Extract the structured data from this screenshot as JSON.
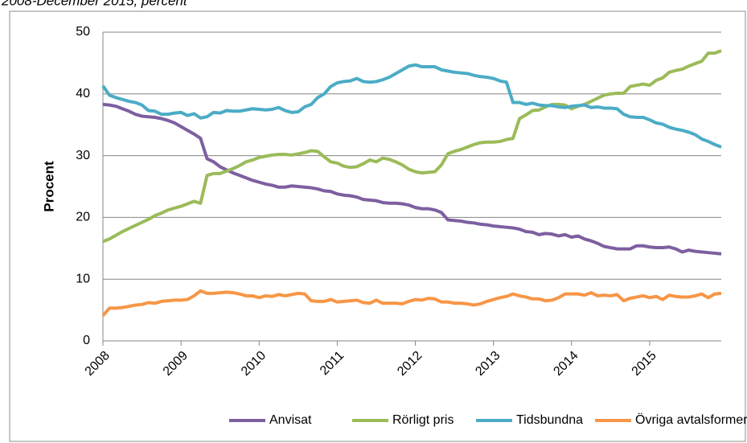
{
  "chart_data": {
    "type": "line",
    "subtitle": "2008-December 2015, percent",
    "y_label": "Procent",
    "categories": [
      "2008",
      null,
      null,
      null,
      null,
      null,
      null,
      null,
      null,
      null,
      null,
      null,
      "2009",
      null,
      null,
      null,
      null,
      null,
      null,
      null,
      null,
      null,
      null,
      null,
      "2010",
      null,
      null,
      null,
      null,
      null,
      null,
      null,
      null,
      null,
      null,
      null,
      "2011",
      null,
      null,
      null,
      null,
      null,
      null,
      null,
      null,
      null,
      null,
      null,
      "2012",
      null,
      null,
      null,
      null,
      null,
      null,
      null,
      null,
      null,
      null,
      null,
      "2013",
      null,
      null,
      null,
      null,
      null,
      null,
      null,
      null,
      null,
      null,
      null,
      "2014",
      null,
      null,
      null,
      null,
      null,
      null,
      null,
      null,
      null,
      null,
      null,
      "2015",
      null,
      null,
      null,
      null,
      null,
      null,
      null,
      null,
      null,
      null,
      null
    ],
    "ylim": [
      0,
      50
    ],
    "yticks": [
      0,
      10,
      20,
      30,
      40,
      50
    ],
    "grid": true,
    "legend": "bottom",
    "series": [
      {
        "name": "Anvisat",
        "color": "#7d5fa0",
        "values": [
          38.3,
          38.2,
          38.0,
          37.6,
          37.2,
          36.7,
          36.4,
          36.3,
          36.2,
          36.0,
          35.7,
          35.3,
          34.7,
          34.1,
          33.5,
          32.8,
          29.5,
          29.0,
          28.2,
          27.7,
          27.2,
          26.8,
          26.4,
          26.0,
          25.7,
          25.4,
          25.2,
          24.9,
          24.9,
          25.1,
          25.0,
          24.9,
          24.8,
          24.6,
          24.3,
          24.2,
          23.8,
          23.6,
          23.5,
          23.3,
          22.9,
          22.8,
          22.7,
          22.4,
          22.3,
          22.3,
          22.2,
          22.0,
          21.6,
          21.4,
          21.4,
          21.2,
          20.8,
          19.6,
          19.5,
          19.4,
          19.2,
          19.1,
          18.9,
          18.8,
          18.6,
          18.5,
          18.4,
          18.3,
          18.1,
          17.7,
          17.6,
          17.2,
          17.4,
          17.3,
          17.0,
          17.2,
          16.8,
          17.0,
          16.5,
          16.2,
          15.8,
          15.3,
          15.1,
          14.9,
          14.9,
          14.9,
          15.4,
          15.4,
          15.2,
          15.1,
          15.1,
          15.2,
          14.9,
          14.4,
          14.7,
          14.5,
          14.4,
          14.3,
          14.2,
          14.1
        ]
      },
      {
        "name": "Rörligt pris",
        "color": "#9bbb59",
        "values": [
          16.1,
          16.5,
          17.1,
          17.7,
          18.2,
          18.7,
          19.2,
          19.7,
          20.3,
          20.7,
          21.2,
          21.5,
          21.8,
          22.2,
          22.6,
          22.3,
          26.8,
          27.1,
          27.1,
          27.5,
          27.9,
          28.4,
          29.0,
          29.3,
          29.7,
          29.9,
          30.1,
          30.2,
          30.2,
          30.1,
          30.3,
          30.5,
          30.8,
          30.7,
          29.8,
          29.0,
          28.8,
          28.3,
          28.1,
          28.2,
          28.7,
          29.3,
          29.0,
          29.6,
          29.4,
          29.0,
          28.5,
          27.8,
          27.4,
          27.2,
          27.3,
          27.4,
          28.5,
          30.3,
          30.7,
          31.0,
          31.4,
          31.8,
          32.1,
          32.2,
          32.2,
          32.3,
          32.6,
          32.8,
          36.0,
          36.6,
          37.3,
          37.4,
          37.9,
          38.3,
          38.3,
          38.2,
          37.6,
          38.0,
          38.3,
          38.8,
          39.3,
          39.8,
          40.0,
          40.1,
          40.1,
          41.2,
          41.4,
          41.6,
          41.4,
          42.2,
          42.6,
          43.5,
          43.8,
          44.0,
          44.5,
          44.9,
          45.3,
          46.6,
          46.6,
          47.0
        ]
      },
      {
        "name": "Tidsbundna",
        "color": "#4bacc6",
        "values": [
          41.3,
          39.8,
          39.4,
          39.1,
          38.8,
          38.6,
          38.2,
          37.3,
          37.2,
          36.7,
          36.7,
          36.9,
          37.0,
          36.5,
          36.8,
          36.1,
          36.3,
          37.0,
          36.9,
          37.3,
          37.2,
          37.2,
          37.4,
          37.6,
          37.5,
          37.4,
          37.5,
          37.8,
          37.3,
          37.0,
          37.1,
          37.9,
          38.3,
          39.4,
          40.0,
          41.2,
          41.8,
          42.0,
          42.1,
          42.5,
          42.0,
          41.9,
          42.0,
          42.3,
          42.7,
          43.3,
          43.9,
          44.5,
          44.7,
          44.4,
          44.4,
          44.4,
          43.9,
          43.7,
          43.5,
          43.4,
          43.3,
          43.0,
          42.8,
          42.7,
          42.5,
          42.1,
          41.9,
          38.6,
          38.6,
          38.3,
          38.5,
          38.2,
          38.1,
          38.1,
          37.9,
          37.8,
          38.0,
          38.1,
          38.2,
          37.8,
          37.9,
          37.7,
          37.7,
          37.6,
          36.7,
          36.3,
          36.2,
          36.2,
          35.8,
          35.3,
          35.1,
          34.6,
          34.3,
          34.1,
          33.8,
          33.4,
          32.7,
          32.3,
          31.8,
          31.4
        ]
      },
      {
        "name": "Övriga avtalsformer",
        "color": "#f79646",
        "values": [
          4.1,
          5.3,
          5.3,
          5.4,
          5.6,
          5.8,
          5.9,
          6.2,
          6.1,
          6.4,
          6.5,
          6.6,
          6.6,
          6.7,
          7.3,
          8.1,
          7.7,
          7.7,
          7.8,
          7.9,
          7.8,
          7.6,
          7.3,
          7.3,
          7.0,
          7.3,
          7.2,
          7.5,
          7.3,
          7.5,
          7.7,
          7.6,
          6.5,
          6.4,
          6.4,
          6.7,
          6.3,
          6.4,
          6.5,
          6.6,
          6.2,
          6.1,
          6.6,
          6.1,
          6.1,
          6.1,
          6.0,
          6.4,
          6.7,
          6.6,
          6.9,
          6.8,
          6.3,
          6.3,
          6.1,
          6.1,
          6.0,
          5.8,
          6.0,
          6.4,
          6.7,
          7.0,
          7.2,
          7.6,
          7.3,
          7.1,
          6.8,
          6.8,
          6.5,
          6.6,
          7.0,
          7.6,
          7.6,
          7.6,
          7.4,
          7.8,
          7.3,
          7.4,
          7.3,
          7.5,
          6.5,
          6.9,
          7.1,
          7.3,
          7.0,
          7.2,
          6.7,
          7.4,
          7.2,
          7.1,
          7.1,
          7.3,
          7.6,
          7.0,
          7.6,
          7.7
        ]
      }
    ]
  }
}
